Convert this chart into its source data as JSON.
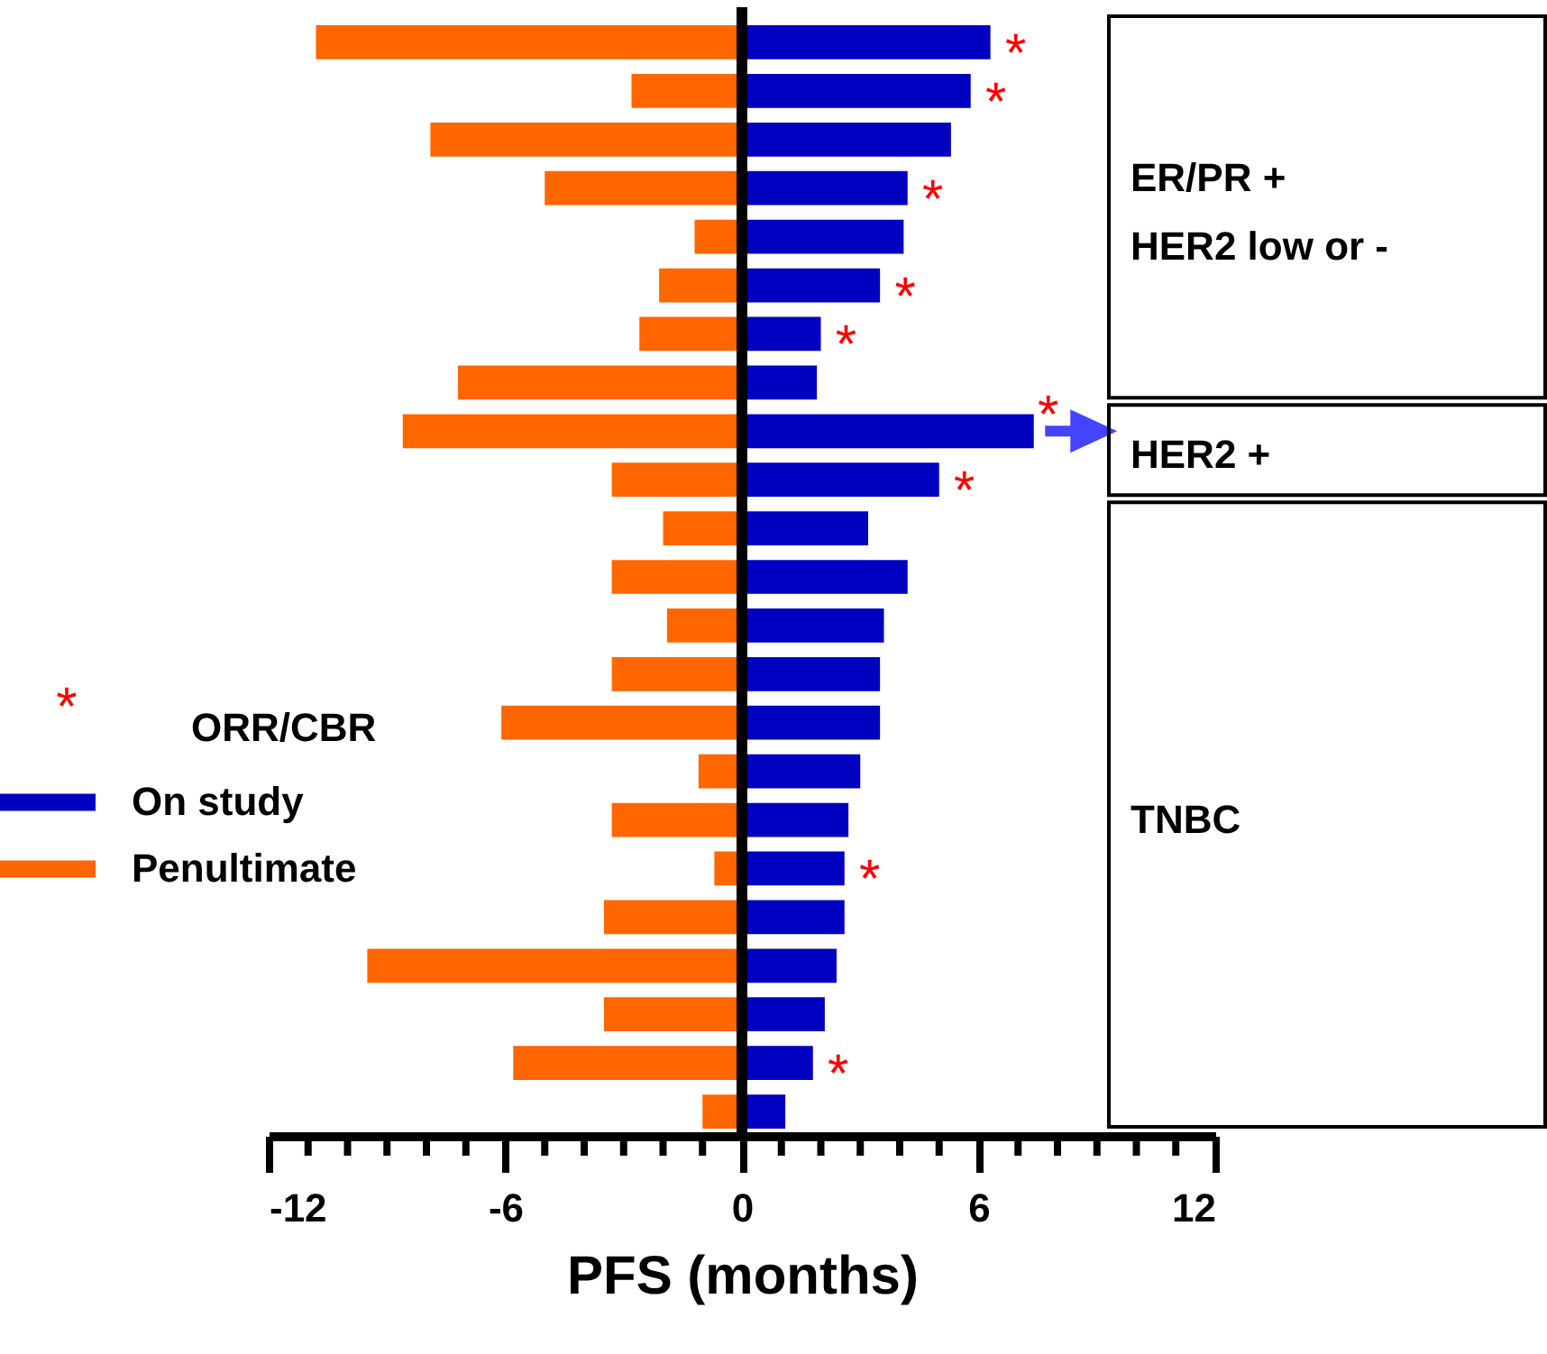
{
  "chart_data": {
    "type": "bar",
    "orientation": "horizontal",
    "xlabel": "PFS (months)",
    "categories": [
      null,
      null,
      null,
      null,
      null,
      null,
      null,
      null,
      null,
      null,
      null,
      null,
      null,
      null,
      null,
      null,
      null,
      null,
      null,
      null,
      null,
      null,
      null
    ],
    "series": [
      {
        "name": "On study",
        "color": "#0000c0",
        "values": [
          6.3,
          5.8,
          5.3,
          4.2,
          4.1,
          3.5,
          2.0,
          1.9,
          7.4,
          5.0,
          3.2,
          4.2,
          3.6,
          3.5,
          3.5,
          3.0,
          2.7,
          2.6,
          2.6,
          2.4,
          2.1,
          1.8,
          1.1
        ],
        "value_labels": [
          "*",
          "*",
          null,
          "*",
          null,
          "*",
          "*",
          null,
          "*",
          "*",
          null,
          null,
          null,
          null,
          null,
          null,
          null,
          "*",
          null,
          null,
          null,
          "*",
          null
        ]
      },
      {
        "name": "Penultimate",
        "color": "#ff6600",
        "values": [
          -10.8,
          -2.8,
          -7.9,
          -5.0,
          -1.2,
          -2.1,
          -2.6,
          -7.2,
          -8.6,
          -3.3,
          -2.0,
          -3.3,
          -1.9,
          -3.3,
          -6.1,
          -1.1,
          -3.3,
          -0.7,
          -3.5,
          -9.5,
          -3.5,
          -5.8,
          -1.0
        ]
      }
    ],
    "xlim": [
      -12,
      12
    ],
    "xticks": [
      -12,
      {
        "value": -11,
        "label": null
      },
      {
        "value": -10,
        "label": null
      },
      {
        "value": -9,
        "label": null
      },
      {
        "value": -8,
        "label": null
      },
      {
        "value": -7,
        "label": null
      },
      -6,
      {
        "value": -5,
        "label": null
      },
      {
        "value": -4,
        "label": null
      },
      {
        "value": -3,
        "label": null
      },
      {
        "value": -2,
        "label": null
      },
      {
        "value": -1,
        "label": null
      },
      0,
      {
        "value": 1,
        "label": null
      },
      {
        "value": 2,
        "label": null
      },
      {
        "value": 3,
        "label": null
      },
      {
        "value": 4,
        "label": null
      },
      {
        "value": 5,
        "label": null
      },
      6,
      {
        "value": 7,
        "label": null
      },
      {
        "value": 8,
        "label": null
      },
      {
        "value": 9,
        "label": null
      },
      {
        "value": 10,
        "label": null
      },
      {
        "value": 11,
        "label": null
      },
      12
    ],
    "ref_lines": [
      {
        "axis": "x",
        "value": 0,
        "color": "#000000"
      }
    ],
    "annotations": [
      "ER/PR +\nHER2 low or -",
      "HER2 +",
      "TNBC",
      "ORR/CBR"
    ],
    "legend": "left",
    "grid": false,
    "tick_labels": "x",
    "stacked": true
  }
}
